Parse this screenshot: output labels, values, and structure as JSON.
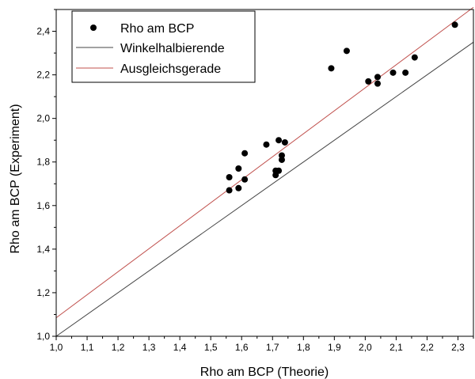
{
  "chart_data": {
    "type": "scatter",
    "xlabel": "Rho am BCP (Theorie)",
    "ylabel": "Rho am BCP (Experiment)",
    "xlim": [
      1.0,
      2.35
    ],
    "ylim": [
      1.0,
      2.5
    ],
    "x_ticks": [
      "1,0",
      "1,1",
      "1,2",
      "1,3",
      "1,4",
      "1,5",
      "1,6",
      "1,7",
      "1,8",
      "1,9",
      "2,0",
      "2,1",
      "2,2",
      "2,3"
    ],
    "y_ticks": [
      "1,0",
      "1,2",
      "1,4",
      "1,6",
      "1,8",
      "2,0",
      "2,2",
      "2,4"
    ],
    "legend_position": "top-left",
    "series": [
      {
        "name": "Rho am BCP",
        "kind": "scatter",
        "color": "#000000",
        "x": [
          1.56,
          1.56,
          1.59,
          1.59,
          1.61,
          1.61,
          1.68,
          1.71,
          1.71,
          1.72,
          1.72,
          1.73,
          1.73,
          1.74,
          1.89,
          1.94,
          2.01,
          2.04,
          2.04,
          2.09,
          2.13,
          2.16,
          2.29
        ],
        "y": [
          1.73,
          1.67,
          1.77,
          1.68,
          1.84,
          1.72,
          1.88,
          1.76,
          1.74,
          1.9,
          1.76,
          1.83,
          1.81,
          1.89,
          2.23,
          2.31,
          2.17,
          2.19,
          2.16,
          2.21,
          2.21,
          2.28,
          2.43
        ]
      },
      {
        "name": "Winkelhalbierende",
        "kind": "line",
        "color": "#444444",
        "x": [
          1.0,
          2.35
        ],
        "y": [
          1.0,
          2.35
        ]
      },
      {
        "name": "Ausgleichsgerade",
        "kind": "line",
        "color": "#c0504d",
        "x": [
          1.0,
          2.35
        ],
        "y": [
          1.085,
          2.51
        ]
      }
    ]
  }
}
